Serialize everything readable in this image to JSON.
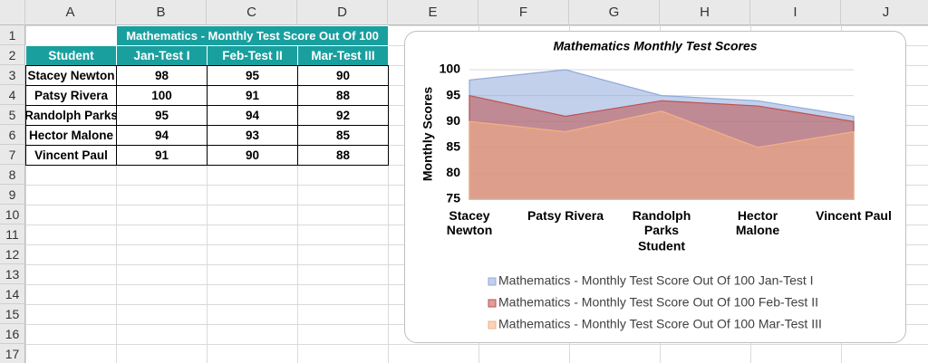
{
  "sheet": {
    "columns": [
      "A",
      "B",
      "C",
      "D",
      "E",
      "F",
      "G",
      "H",
      "I",
      "J"
    ],
    "rows": [
      "1",
      "2",
      "3",
      "4",
      "5",
      "6",
      "7",
      "8",
      "9",
      "10",
      "11",
      "12",
      "13",
      "14",
      "15",
      "16",
      "17"
    ]
  },
  "table": {
    "title": "Mathematics - Monthly Test Score Out Of 100",
    "headers": [
      "Student",
      "Jan-Test I",
      "Feb-Test II",
      "Mar-Test III"
    ],
    "rows": [
      [
        "Stacey Newton",
        "98",
        "95",
        "90"
      ],
      [
        "Patsy Rivera",
        "100",
        "91",
        "88"
      ],
      [
        "Randolph Parks",
        "95",
        "94",
        "92"
      ],
      [
        "Hector Malone",
        "94",
        "93",
        "85"
      ],
      [
        "Vincent Paul",
        "91",
        "90",
        "88"
      ]
    ]
  },
  "chart_data": {
    "type": "area",
    "title": "Mathematics Monthly Test Scores",
    "x_label": "Student",
    "y_label": "Monthly Scores",
    "categories": [
      "Stacey Newton",
      "Patsy Rivera",
      "Randolph Parks",
      "Hector Malone",
      "Vincent Paul"
    ],
    "series": [
      {
        "name": "Mathematics - Monthly Test Score Out Of 100 Jan-Test I",
        "color": "#8faadc",
        "values": [
          98,
          100,
          95,
          94,
          91
        ]
      },
      {
        "name": "Mathematics - Monthly Test Score Out Of 100 Feb-Test II",
        "color": "#c0504d",
        "values": [
          95,
          91,
          94,
          93,
          90
        ]
      },
      {
        "name": "Mathematics - Monthly Test Score Out Of 100 Mar-Test III",
        "color": "#f4b183",
        "values": [
          90,
          88,
          92,
          85,
          88
        ]
      }
    ],
    "ylim": [
      75,
      100
    ],
    "yticks": [
      75,
      80,
      85,
      90,
      95,
      100
    ],
    "grid": true,
    "legend": "bottom"
  }
}
